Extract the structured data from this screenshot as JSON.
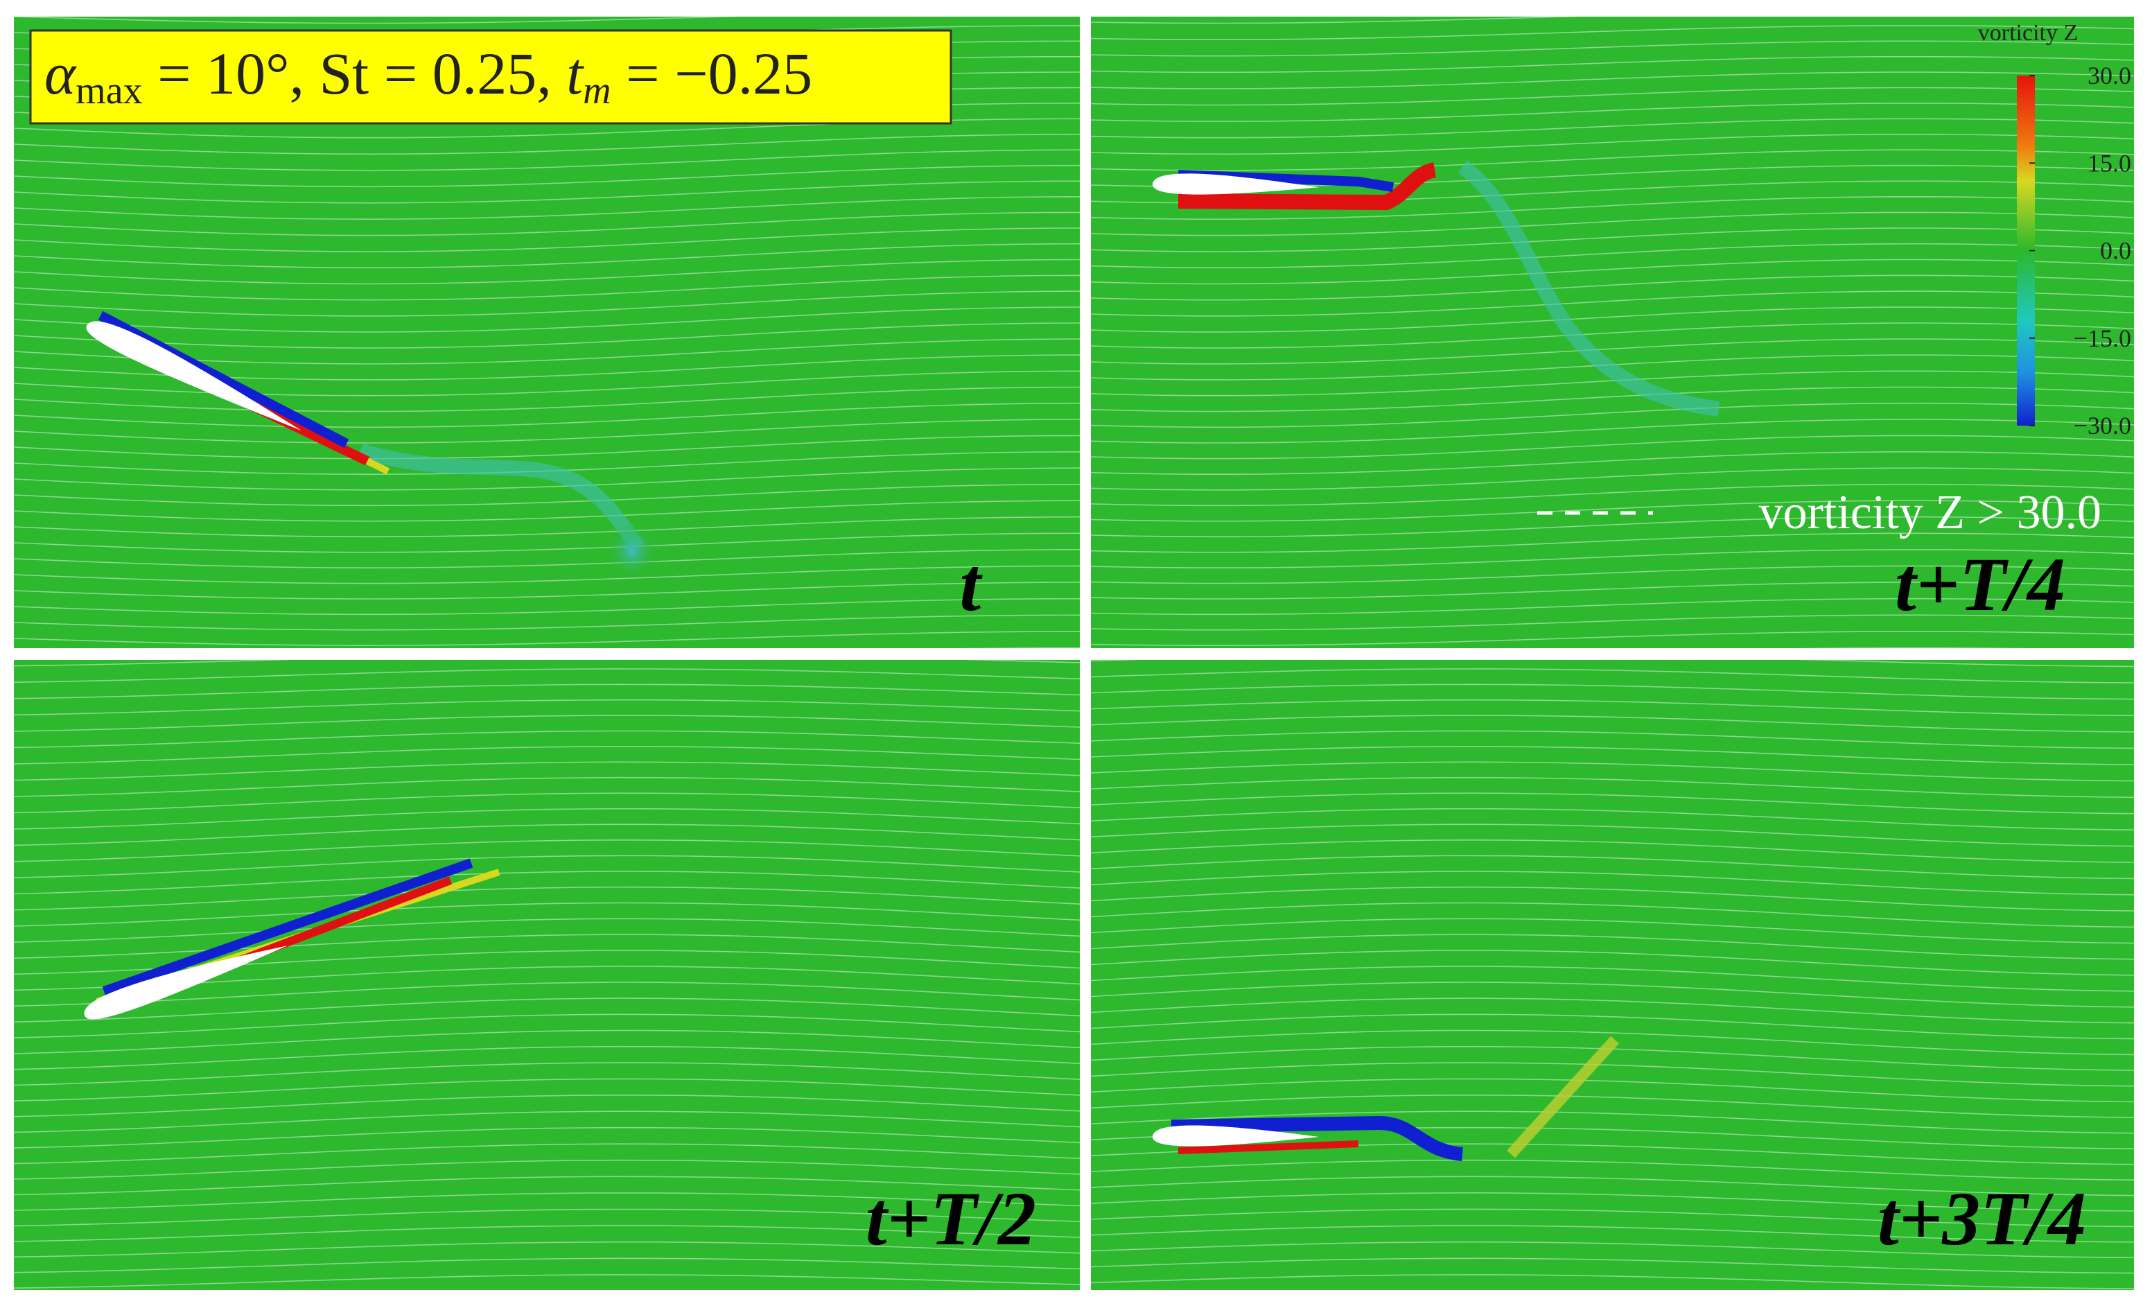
{
  "annotation": {
    "parts": [
      "α",
      "max",
      " = 10°, St = 0.25, ",
      "t",
      "m",
      " = −0.25"
    ]
  },
  "colorbar": {
    "title": "vorticity Z",
    "ticks": [
      {
        "value": 30,
        "label": "30.0"
      },
      {
        "value": 15,
        "label": "15.0"
      },
      {
        "value": 0,
        "label": "0.0"
      },
      {
        "value": -15,
        "label": "−15.0"
      },
      {
        "value": -30,
        "label": "−30.0"
      }
    ],
    "lim": [
      -30,
      30
    ]
  },
  "legend": {
    "text": "vorticity Z > 30.0"
  },
  "panels": [
    {
      "label": "t"
    },
    {
      "label": "t+T/4"
    },
    {
      "label": "t+T/2"
    },
    {
      "label": "t+3T/4"
    }
  ]
}
